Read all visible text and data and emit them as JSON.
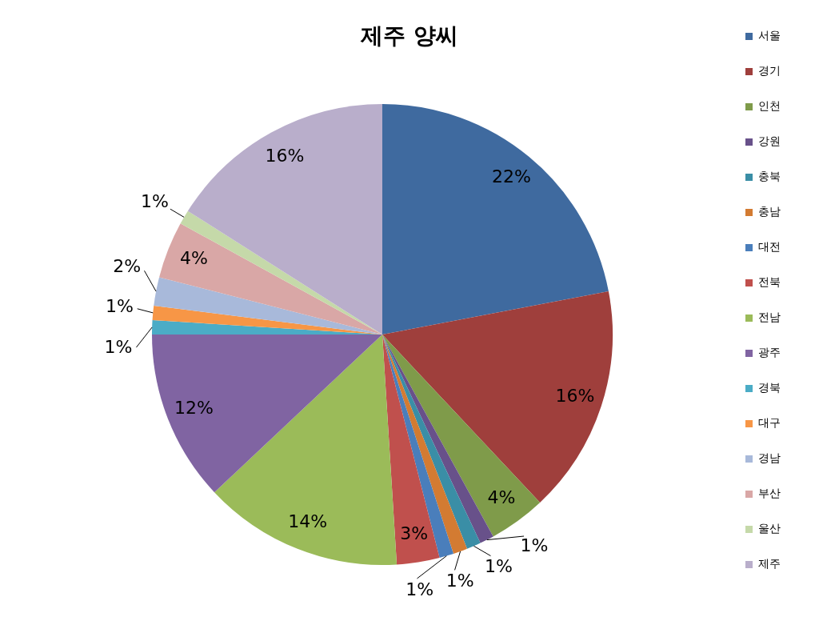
{
  "chart_data": {
    "type": "pie",
    "title": "제주 양씨",
    "categories": [
      "서울",
      "경기",
      "인천",
      "강원",
      "충북",
      "충남",
      "대전",
      "전북",
      "전남",
      "광주",
      "경북",
      "대구",
      "경남",
      "부산",
      "울산",
      "제주"
    ],
    "values": [
      22,
      16,
      4,
      1,
      1,
      1,
      1,
      3,
      14,
      12,
      1,
      1,
      2,
      4,
      1,
      16
    ],
    "value_labels": [
      "22%",
      "16%",
      "4%",
      "1%",
      "1%",
      "1%",
      "1%",
      "3%",
      "14%",
      "12%",
      "1%",
      "1%",
      "2%",
      "4%",
      "1%",
      "16%"
    ],
    "colors": [
      "#3f6a9f",
      "#9f3f3c",
      "#7f9b4a",
      "#68518a",
      "#3a8ea6",
      "#d37b32",
      "#4a7ebb",
      "#c0504d",
      "#9bbb59",
      "#8064a2",
      "#4bacc6",
      "#f79646",
      "#a8b9da",
      "#d9a7a6",
      "#c5d9a9",
      "#b9aecb"
    ],
    "legend": "right"
  }
}
